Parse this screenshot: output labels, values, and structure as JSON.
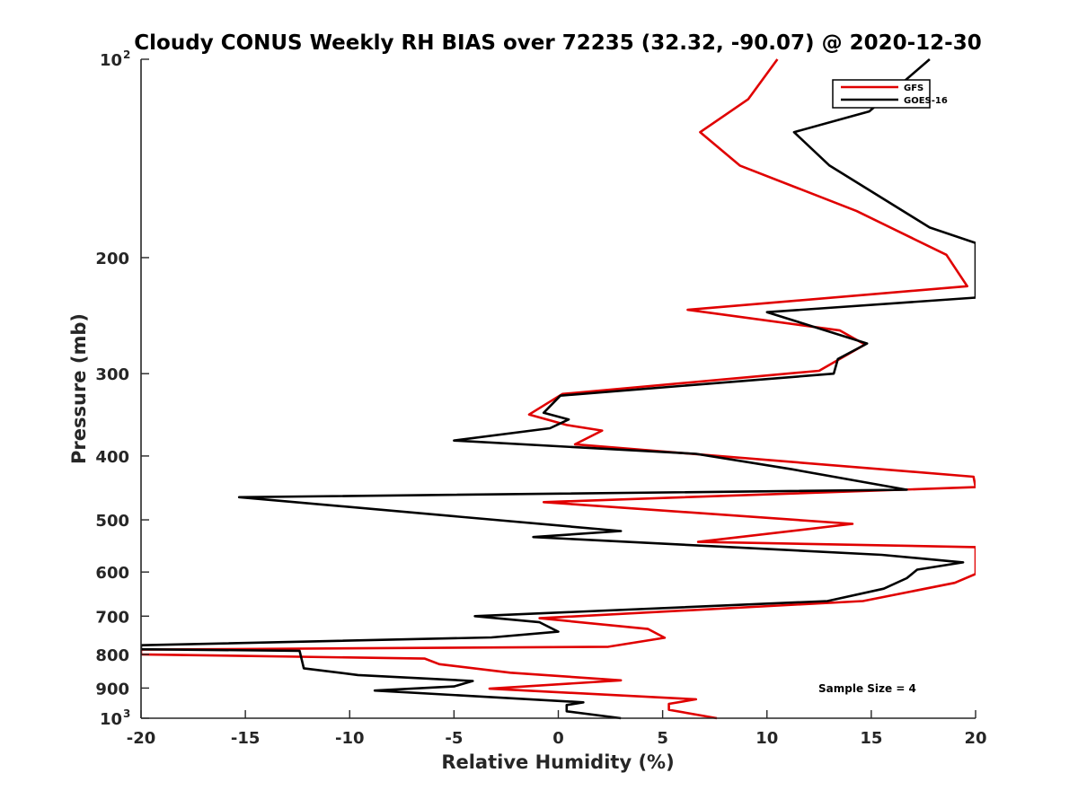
{
  "chart_data": {
    "type": "line",
    "title": "Cloudy CONUS Weekly RH BIAS over 72235 (32.32, -90.07) @ 2020-12-30",
    "xlabel": "Relative Humidity (%)",
    "ylabel": "Pressure (mb)",
    "xlim": [
      -20,
      20
    ],
    "ylim": [
      100,
      1000
    ],
    "yscale": "log",
    "y_reversed": true,
    "grid": false,
    "legend_position": "top-right",
    "x_ticks": [
      {
        "value": -20,
        "label": "-20"
      },
      {
        "value": -15,
        "label": "-15"
      },
      {
        "value": -10,
        "label": "-10"
      },
      {
        "value": -5,
        "label": "-5"
      },
      {
        "value": 0,
        "label": "0"
      },
      {
        "value": 5,
        "label": "5"
      },
      {
        "value": 10,
        "label": "10"
      },
      {
        "value": 15,
        "label": "15"
      },
      {
        "value": 20,
        "label": "20"
      }
    ],
    "y_ticks": [
      {
        "value": 100,
        "base": "10",
        "exp": "2"
      },
      {
        "value": 200,
        "label": "200"
      },
      {
        "value": 300,
        "label": "300"
      },
      {
        "value": 400,
        "label": "400"
      },
      {
        "value": 500,
        "label": "500"
      },
      {
        "value": 600,
        "label": "600"
      },
      {
        "value": 700,
        "label": "700"
      },
      {
        "value": 800,
        "label": "800"
      },
      {
        "value": 900,
        "label": "900"
      },
      {
        "value": 1000,
        "base": "10",
        "exp": "3"
      }
    ],
    "annotation": "Sample Size = 4",
    "series": [
      {
        "name": "GFS",
        "color": "#e00000",
        "points": [
          [
            10.5,
            100
          ],
          [
            9.1,
            115
          ],
          [
            6.8,
            129
          ],
          [
            8.7,
            145
          ],
          [
            14.3,
            170
          ],
          [
            18.6,
            198
          ],
          [
            19.6,
            221
          ],
          [
            6.2,
            240
          ],
          [
            13.5,
            258
          ],
          [
            14.7,
            271
          ],
          [
            12.5,
            297
          ],
          [
            0.2,
            322
          ],
          [
            -1.4,
            346
          ],
          [
            0.4,
            359
          ],
          [
            2.1,
            366
          ],
          [
            0.8,
            384
          ],
          [
            19.9,
            430
          ],
          [
            20.0,
            446
          ],
          [
            -0.7,
            470
          ],
          [
            14.1,
            507
          ],
          [
            6.7,
            540
          ],
          [
            20.0,
            550
          ],
          [
            20.0,
            604
          ],
          [
            19.0,
            623
          ],
          [
            14.6,
            664
          ],
          [
            -0.9,
            705
          ],
          [
            4.3,
            732
          ],
          [
            5.1,
            755
          ],
          [
            2.4,
            779
          ],
          [
            -20.0,
            787
          ],
          [
            -20.0,
            800
          ],
          [
            -6.4,
            812
          ],
          [
            -5.7,
            828
          ],
          [
            -2.3,
            853
          ],
          [
            3.0,
            876
          ],
          [
            -3.3,
            902
          ],
          [
            6.6,
            936
          ],
          [
            5.3,
            951
          ],
          [
            5.3,
            971
          ],
          [
            7.6,
            1000
          ]
        ]
      },
      {
        "name": "GOES-16",
        "color": "#000000",
        "points": [
          [
            17.8,
            100
          ],
          [
            14.9,
            120
          ],
          [
            11.3,
            129
          ],
          [
            13.0,
            145
          ],
          [
            17.8,
            180
          ],
          [
            20.0,
            190
          ],
          [
            20.0,
            230
          ],
          [
            10.0,
            242
          ],
          [
            14.8,
            270
          ],
          [
            13.4,
            285
          ],
          [
            13.2,
            300
          ],
          [
            0.1,
            324
          ],
          [
            -0.7,
            344
          ],
          [
            0.5,
            352
          ],
          [
            -0.4,
            363
          ],
          [
            -5.0,
            379
          ],
          [
            6.6,
            397
          ],
          [
            11.2,
            419
          ],
          [
            16.7,
            450
          ],
          [
            -15.3,
            462
          ],
          [
            3.0,
            520
          ],
          [
            -1.2,
            531
          ],
          [
            15.5,
            565
          ],
          [
            19.4,
            580
          ],
          [
            17.2,
            595
          ],
          [
            16.7,
            613
          ],
          [
            15.6,
            636
          ],
          [
            12.9,
            664
          ],
          [
            -4.0,
            700
          ],
          [
            -0.9,
            715
          ],
          [
            0.0,
            739
          ],
          [
            -3.2,
            754
          ],
          [
            -20.0,
            775
          ],
          [
            -20.0,
            786
          ],
          [
            -12.4,
            790
          ],
          [
            -12.2,
            840
          ],
          [
            -9.6,
            860
          ],
          [
            -4.1,
            878
          ],
          [
            -5.0,
            895
          ],
          [
            -8.8,
            908
          ],
          [
            1.2,
            946
          ],
          [
            0.4,
            955
          ],
          [
            0.4,
            976
          ],
          [
            3.0,
            1000
          ]
        ]
      }
    ]
  }
}
